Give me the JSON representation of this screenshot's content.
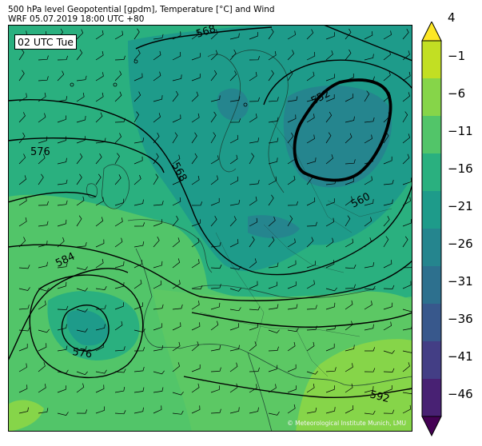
{
  "title": {
    "line1": "500 hPa level Geopotential [gpdm], Temperature [°C] and Wind",
    "line2": "WRF 05.07.2019 18:00 UTC +80"
  },
  "time_label": "02 UTC Tue",
  "copyright": "© Meteorological Institute Munich, LMU",
  "colorbar": {
    "labels": [
      "4",
      "−1",
      "−6",
      "−11",
      "−16",
      "−21",
      "−26",
      "−31",
      "−36",
      "−41",
      "−46"
    ],
    "colors_top_to_bottom": [
      "#fde725",
      "#c2df23",
      "#86d549",
      "#52c569",
      "#2ab07f",
      "#1e9b8a",
      "#25858e",
      "#2d708e",
      "#38588c",
      "#433e85",
      "#482173",
      "#440154"
    ]
  },
  "contour_labels": [
    "568",
    "552",
    "576",
    "568",
    "560",
    "584",
    "576",
    "592"
  ],
  "colors": {
    "ocean_green": "#2ab07f",
    "land_green": "#52c569",
    "cold_teal": "#1e9b8a",
    "core_teal": "#25858e",
    "warm_lime": "#86d549",
    "hot_yellow": "#c2df23"
  }
}
